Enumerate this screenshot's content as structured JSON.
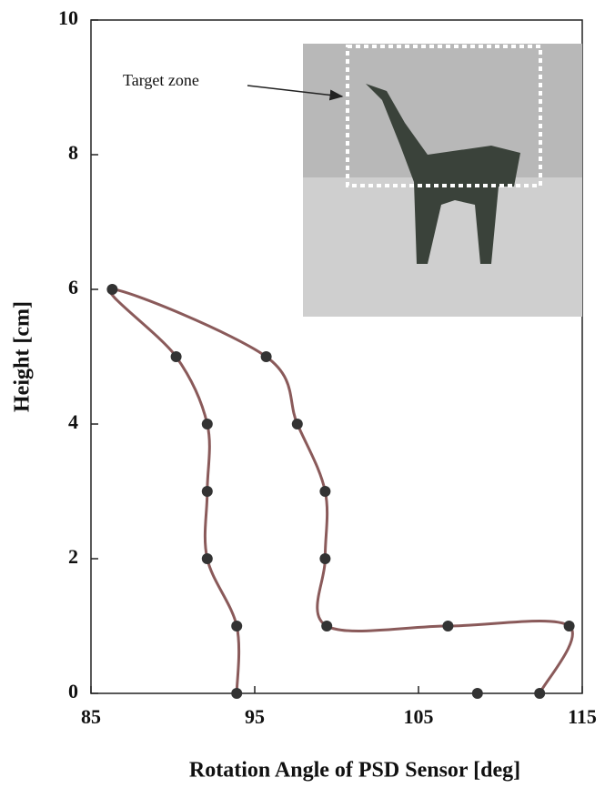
{
  "chart_data": {
    "type": "scatter",
    "x_label": "Rotation Angle of PSD Sensor [deg]",
    "y_label": "Height [cm]",
    "annotation": "Target zone",
    "xlim": [
      85,
      115
    ],
    "xticks": [
      85,
      95,
      105,
      115
    ],
    "ylim": [
      0,
      10
    ],
    "yticks": [
      0,
      2,
      4,
      6,
      8,
      10
    ],
    "series": [
      {
        "color": "#333333",
        "line_color": "#8a5a5a",
        "line": true,
        "x": [
          93.9,
          93.9,
          92.1,
          92.1,
          92.1,
          90.2,
          86.3,
          95.7,
          97.6,
          99.3,
          99.3,
          99.4,
          106.8,
          114.2,
          112.4
        ],
        "y": [
          0,
          1,
          2,
          3,
          4,
          5,
          6,
          5,
          4,
          3,
          2,
          1,
          1,
          1,
          0
        ]
      },
      {
        "color": "#333333",
        "line": false,
        "x": [
          108.6
        ],
        "y": [
          0
        ]
      }
    ]
  }
}
